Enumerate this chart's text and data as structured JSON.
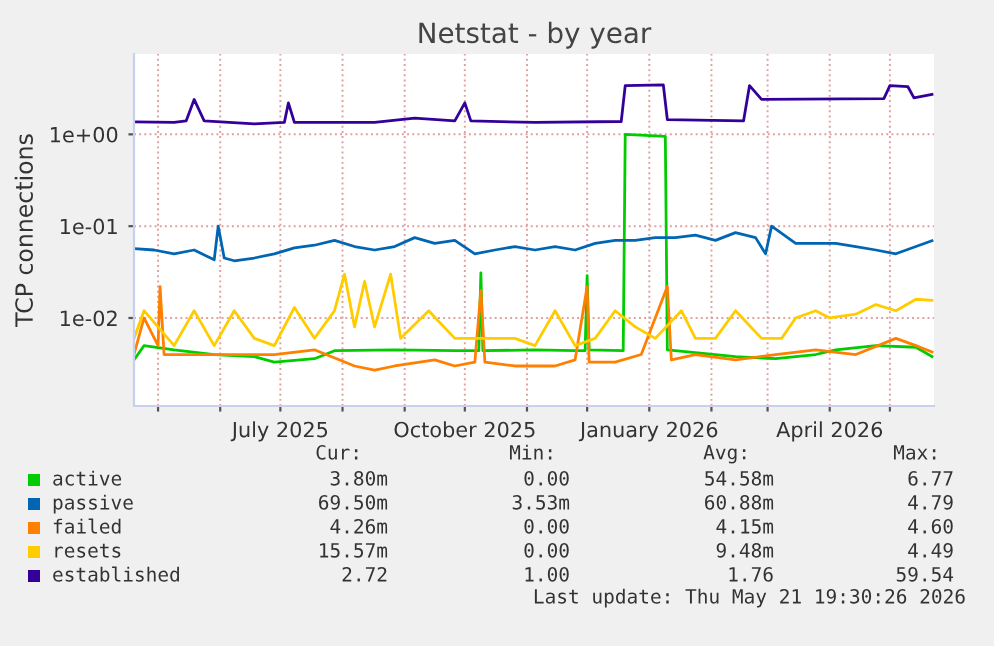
{
  "chart_data": {
    "type": "line",
    "title": "Netstat - by year",
    "ylabel": "TCP connections",
    "log": "y",
    "grid": true,
    "legend": "bottom",
    "marker": "none",
    "line_style": "solid",
    "xlim": [
      "2025-04-19",
      "2026-05-23"
    ],
    "xticks": [
      {
        "value": "2025-05-01",
        "label": null
      },
      {
        "value": "2025-06-01",
        "label": null
      },
      {
        "value": "2025-07-01",
        "label": "July 2025"
      },
      {
        "value": "2025-08-01",
        "label": null
      },
      {
        "value": "2025-09-01",
        "label": null
      },
      {
        "value": "2025-10-01",
        "label": "October 2025"
      },
      {
        "value": "2025-11-01",
        "label": null
      },
      {
        "value": "2025-12-01",
        "label": null
      },
      {
        "value": "2026-01-01",
        "label": "January 2026"
      },
      {
        "value": "2026-02-01",
        "label": null
      },
      {
        "value": "2026-03-01",
        "label": null
      },
      {
        "value": "2026-04-01",
        "label": "April 2026"
      },
      {
        "value": "2026-05-01",
        "label": null
      }
    ],
    "ylim": [
      0.0011,
      7.5
    ],
    "yticks": [
      {
        "value": 0.01,
        "label": "1e-02"
      },
      {
        "value": 0.1,
        "label": "1e-01"
      },
      {
        "value": 1,
        "label": "1e+00"
      }
    ],
    "series": [
      {
        "name": "active",
        "color": "#00cc00",
        "x": [
          "2025-04-19",
          "2025-04-24",
          "2025-05-09",
          "2025-05-29",
          "2025-06-18",
          "2025-06-28",
          "2025-07-18",
          "2025-07-28",
          "2025-08-27",
          "2025-09-26",
          "2025-10-08",
          "2025-10-09",
          "2025-10-10",
          "2025-11-05",
          "2025-11-25",
          "2025-11-30",
          "2025-12-01",
          "2025-12-02",
          "2025-12-19",
          "2025-12-20",
          "2026-01-09",
          "2026-01-10",
          "2026-01-24",
          "2026-02-13",
          "2026-03-05",
          "2026-03-25",
          "2026-04-04",
          "2026-04-24",
          "2026-05-14",
          "2026-05-22"
        ],
        "values": [
          0.0035,
          0.005,
          0.0045,
          0.004,
          0.0038,
          0.0033,
          0.0036,
          0.0044,
          0.0045,
          0.0044,
          0.0044,
          0.031,
          0.0044,
          0.0045,
          0.0044,
          0.0044,
          0.029,
          0.0045,
          0.0044,
          1.0,
          0.95,
          0.0045,
          0.0042,
          0.0038,
          0.0036,
          0.004,
          0.0045,
          0.005,
          0.0048,
          0.0038
        ]
      },
      {
        "name": "passive",
        "color": "#0066b3",
        "x": [
          "2025-04-19",
          "2025-04-29",
          "2025-05-09",
          "2025-05-19",
          "2025-05-29",
          "2025-05-31",
          "2025-06-03",
          "2025-06-08",
          "2025-06-18",
          "2025-06-28",
          "2025-07-08",
          "2025-07-18",
          "2025-07-28",
          "2025-08-07",
          "2025-08-17",
          "2025-08-27",
          "2025-09-06",
          "2025-09-16",
          "2025-09-26",
          "2025-10-06",
          "2025-10-16",
          "2025-10-26",
          "2025-11-05",
          "2025-11-15",
          "2025-11-25",
          "2025-12-05",
          "2025-12-15",
          "2025-12-25",
          "2026-01-04",
          "2026-01-14",
          "2026-01-24",
          "2026-02-03",
          "2026-02-13",
          "2026-02-23",
          "2026-02-28",
          "2026-03-03",
          "2026-03-15",
          "2026-03-25",
          "2026-04-04",
          "2026-04-14",
          "2026-04-24",
          "2026-05-04",
          "2026-05-14",
          "2026-05-22"
        ],
        "values": [
          0.057,
          0.055,
          0.05,
          0.055,
          0.043,
          0.1,
          0.045,
          0.042,
          0.045,
          0.05,
          0.058,
          0.062,
          0.07,
          0.06,
          0.055,
          0.06,
          0.075,
          0.065,
          0.07,
          0.05,
          0.055,
          0.06,
          0.055,
          0.06,
          0.055,
          0.065,
          0.07,
          0.07,
          0.075,
          0.075,
          0.08,
          0.07,
          0.085,
          0.075,
          0.05,
          0.1,
          0.065,
          0.065,
          0.065,
          0.06,
          0.055,
          0.05,
          0.06,
          0.0695
        ]
      },
      {
        "name": "failed",
        "color": "#ff8000",
        "x": [
          "2025-04-19",
          "2025-04-24",
          "2025-05-01",
          "2025-05-02",
          "2025-05-04",
          "2025-05-19",
          "2025-06-08",
          "2025-06-28",
          "2025-07-18",
          "2025-08-07",
          "2025-08-17",
          "2025-08-27",
          "2025-09-16",
          "2025-09-26",
          "2025-10-06",
          "2025-10-09",
          "2025-10-11",
          "2025-10-26",
          "2025-11-15",
          "2025-11-25",
          "2025-12-01",
          "2025-12-02",
          "2025-12-15",
          "2025-12-28",
          "2026-01-10",
          "2026-01-12",
          "2026-01-24",
          "2026-02-13",
          "2026-03-05",
          "2026-03-25",
          "2026-04-14",
          "2026-05-04",
          "2026-05-14",
          "2026-05-22"
        ],
        "values": [
          0.004,
          0.01,
          0.005,
          0.022,
          0.004,
          0.004,
          0.004,
          0.004,
          0.0045,
          0.003,
          0.0027,
          0.003,
          0.0035,
          0.003,
          0.0033,
          0.02,
          0.0033,
          0.003,
          0.003,
          0.0035,
          0.022,
          0.0033,
          0.0033,
          0.004,
          0.022,
          0.0035,
          0.004,
          0.0035,
          0.004,
          0.0045,
          0.004,
          0.006,
          0.005,
          0.00426
        ]
      },
      {
        "name": "resets",
        "color": "#ffcc00",
        "x": [
          "2025-04-19",
          "2025-04-24",
          "2025-05-09",
          "2025-05-19",
          "2025-05-29",
          "2025-06-08",
          "2025-06-18",
          "2025-06-28",
          "2025-07-08",
          "2025-07-18",
          "2025-07-28",
          "2025-08-02",
          "2025-08-07",
          "2025-08-12",
          "2025-08-17",
          "2025-08-25",
          "2025-08-30",
          "2025-09-13",
          "2025-09-26",
          "2025-10-06",
          "2025-10-16",
          "2025-10-26",
          "2025-11-05",
          "2025-11-15",
          "2025-11-25",
          "2025-12-05",
          "2025-12-15",
          "2025-12-25",
          "2026-01-04",
          "2026-01-17",
          "2026-01-24",
          "2026-02-03",
          "2026-02-13",
          "2026-02-26",
          "2026-03-08",
          "2026-03-15",
          "2026-03-25",
          "2026-04-01",
          "2026-04-14",
          "2026-04-24",
          "2026-05-04",
          "2026-05-14",
          "2026-05-22"
        ],
        "values": [
          0.006,
          0.012,
          0.005,
          0.012,
          0.005,
          0.012,
          0.006,
          0.005,
          0.013,
          0.006,
          0.012,
          0.03,
          0.008,
          0.025,
          0.008,
          0.03,
          0.006,
          0.012,
          0.006,
          0.006,
          0.006,
          0.006,
          0.005,
          0.012,
          0.005,
          0.006,
          0.012,
          0.008,
          0.006,
          0.012,
          0.006,
          0.006,
          0.012,
          0.006,
          0.006,
          0.01,
          0.012,
          0.01,
          0.011,
          0.014,
          0.012,
          0.016,
          0.0156
        ]
      },
      {
        "name": "established",
        "color": "#330099",
        "x": [
          "2025-04-19",
          "2025-05-09",
          "2025-05-15",
          "2025-05-19",
          "2025-05-24",
          "2025-06-18",
          "2025-07-03",
          "2025-07-05",
          "2025-07-08",
          "2025-08-17",
          "2025-09-06",
          "2025-09-26",
          "2025-10-01",
          "2025-10-04",
          "2025-11-05",
          "2025-12-18",
          "2025-12-20",
          "2026-01-08",
          "2026-01-10",
          "2026-02-17",
          "2026-02-20",
          "2026-02-26",
          "2026-04-28",
          "2026-05-01",
          "2026-05-10",
          "2026-05-13",
          "2026-05-22"
        ],
        "values": [
          1.37,
          1.35,
          1.4,
          2.4,
          1.4,
          1.3,
          1.35,
          2.2,
          1.35,
          1.35,
          1.5,
          1.4,
          2.2,
          1.4,
          1.35,
          1.38,
          3.4,
          3.45,
          1.45,
          1.4,
          3.4,
          2.4,
          2.45,
          3.4,
          3.3,
          2.5,
          2.72
        ]
      }
    ],
    "annotations": [
      "Cur:",
      "Min:",
      "Avg:",
      "Max:",
      "3.80m",
      "0.00",
      "54.58m",
      "6.77",
      "69.50m",
      "3.53m",
      "60.88m",
      "4.79",
      "4.26m",
      "0.00",
      "4.15m",
      "4.60",
      "15.57m",
      "0.00",
      "9.48m",
      "4.49",
      "2.72",
      "1.00",
      "1.76",
      "59.54",
      "Last update: Thu May 21 19:30:26 2026"
    ]
  }
}
